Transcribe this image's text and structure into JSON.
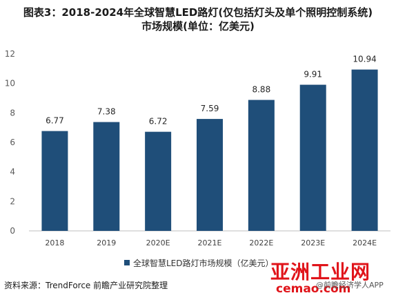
{
  "chart_data": {
    "type": "bar",
    "title": [
      "图表3：2018-2024年全球智慧LED路灯(仅包括灯头及单个照明控制系统)",
      "市场规模(单位：亿美元)"
    ],
    "categories": [
      "2018",
      "2019",
      "2020E",
      "2021E",
      "2022E",
      "2023E",
      "2024E"
    ],
    "series": [
      {
        "name": "全球智慧LED路灯市场规模（亿美元）",
        "values": [
          6.77,
          7.38,
          6.72,
          7.59,
          8.88,
          9.91,
          10.94
        ]
      }
    ],
    "data_labels": [
      "6.77",
      "7.38",
      "6.72",
      "7.59",
      "8.88",
      "9.91",
      "10.94"
    ],
    "ylim": [
      0,
      12
    ],
    "yticks": [
      0,
      2,
      4,
      6,
      8,
      10,
      12
    ],
    "xlabel": "",
    "ylabel": "",
    "grid": false,
    "legend_position": "bottom",
    "bar_color": "#1f4e79"
  },
  "source_text": "资料来源：TrendForce 前瞻产业研究院整理",
  "brand": {
    "name": "亚洲工业网",
    "url": "cemao.com",
    "app_credit": "@前瞻经济学人APP"
  }
}
